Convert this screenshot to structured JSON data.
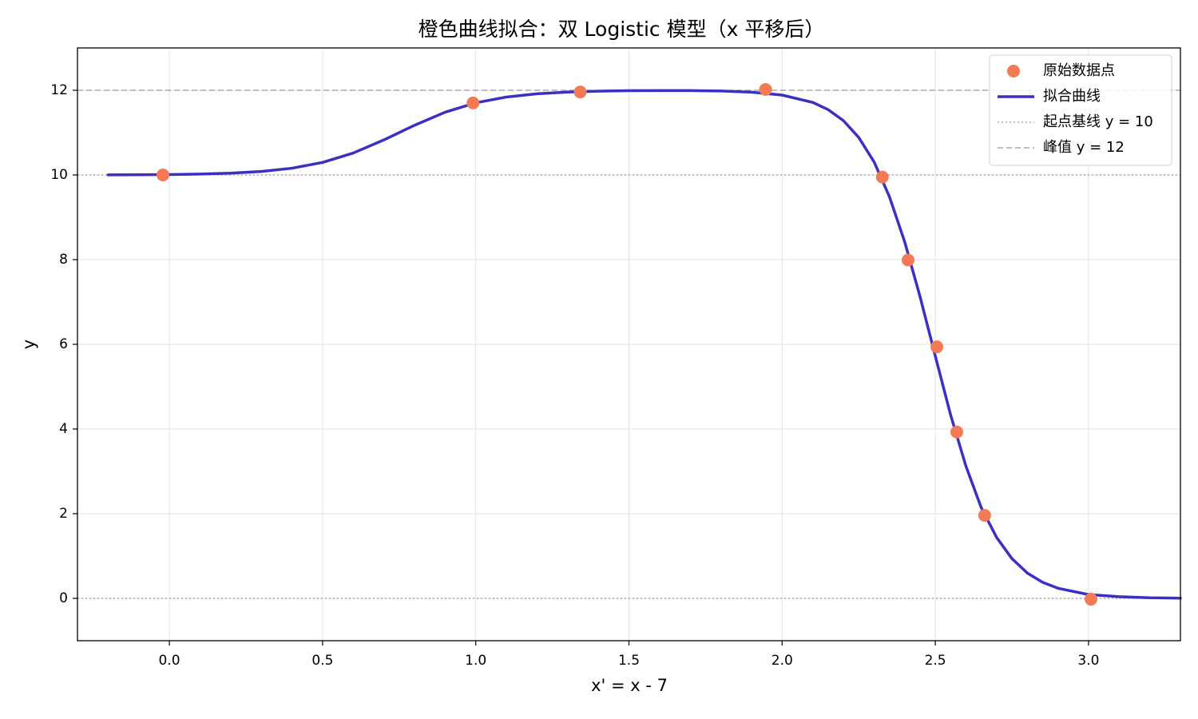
{
  "chart_data": {
    "type": "line",
    "title": "橙色曲线拟合：双 Logistic 模型（x 平移后）",
    "xlabel": "x' = x - 7",
    "ylabel": "y",
    "xlim": [
      -0.3,
      3.3
    ],
    "ylim": [
      -1,
      13
    ],
    "xticks": [
      {
        "value": 0,
        "label": "0.0"
      },
      0.5,
      {
        "value": 1,
        "label": "1.0"
      },
      1.5,
      {
        "value": 2,
        "label": "2.0"
      },
      2.5,
      {
        "value": 3,
        "label": "3.0"
      }
    ],
    "yticks": [
      0,
      2,
      4,
      6,
      8,
      10,
      12
    ],
    "grid": true,
    "legend": "upper right",
    "series": [
      {
        "name": "原始数据点",
        "type": "scatter",
        "color": "#f47a55",
        "x": [
          -0.021,
          0.991,
          1.341,
          1.946,
          2.327,
          2.411,
          2.505,
          2.57,
          2.661,
          3.008
        ],
        "y": [
          10.0,
          11.7,
          11.96,
          12.02,
          9.95,
          7.99,
          5.94,
          3.93,
          1.96,
          -0.02
        ]
      },
      {
        "name": "拟合曲线",
        "type": "line",
        "color": "#3b2fc4",
        "x": [
          -0.2,
          -0.1,
          0,
          0.1,
          0.2,
          0.3,
          0.4,
          0.5,
          0.6,
          0.7,
          0.8,
          0.9,
          1.0,
          1.1,
          1.2,
          1.3,
          1.4,
          1.5,
          1.6,
          1.7,
          1.8,
          1.9,
          2.0,
          2.1,
          2.15,
          2.2,
          2.25,
          2.3,
          2.35,
          2.4,
          2.45,
          2.5,
          2.55,
          2.6,
          2.65,
          2.7,
          2.75,
          2.8,
          2.85,
          2.9,
          3.0,
          3.1,
          3.2,
          3.3
        ],
        "y": [
          10.003,
          10.005,
          10.01,
          10.021,
          10.042,
          10.082,
          10.159,
          10.296,
          10.518,
          10.827,
          11.173,
          11.482,
          11.704,
          11.841,
          11.918,
          11.958,
          11.979,
          11.99,
          11.992,
          11.993,
          11.983,
          11.956,
          11.887,
          11.713,
          11.544,
          11.283,
          10.886,
          10.31,
          9.49,
          8.42,
          7.13,
          5.72,
          4.33,
          3.12,
          2.14,
          1.44,
          0.94,
          0.6,
          0.38,
          0.24,
          0.09,
          0.04,
          0.014,
          0.005
        ]
      }
    ],
    "hlines": [
      {
        "value": 10,
        "name": "起点基线 y = 10",
        "style": "dotted",
        "color": "#999999"
      },
      {
        "value": 12,
        "name": "峰值 y = 12",
        "style": "dashed",
        "color": "#999999"
      },
      {
        "value": 0,
        "style": "dotted",
        "color": "#999999"
      }
    ]
  }
}
